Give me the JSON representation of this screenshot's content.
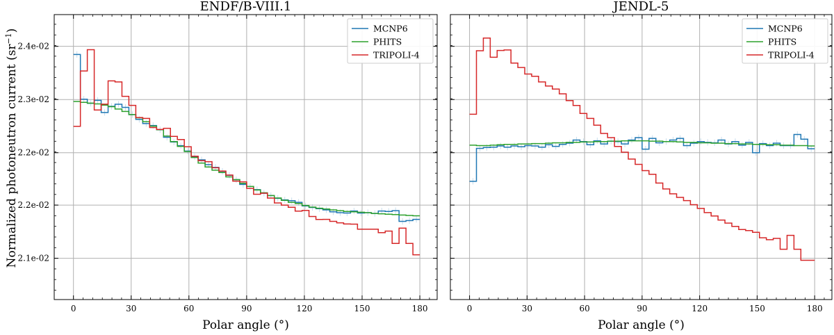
{
  "figure": {
    "ylabel_main": "Normalized photoneutron current (sr",
    "ylabel_exp": "−1",
    "ylabel_close": ")"
  },
  "chart_data": [
    {
      "type": "line",
      "title": "ENDF/B-VIII.1",
      "xlabel": "Polar angle (°)",
      "ylabel": "Normalized photoneutron current (sr−1)",
      "xlim": [
        -10,
        189
      ],
      "ylim": [
        0.02048,
        0.02407
      ],
      "xticks": [
        0,
        30,
        60,
        90,
        120,
        150,
        180
      ],
      "yticks": [
        0.021,
        0.02167,
        0.02233,
        0.023,
        0.02367
      ],
      "ytick_labels": [
        "2.1e-02",
        "2.2e-02",
        "2.2e-02",
        "2.3e-02",
        "2.4e-02"
      ],
      "grid": true,
      "legend_position": "top-right",
      "bin_edges": [
        0,
        3.6,
        7.2,
        10.8,
        14.4,
        18,
        21.6,
        25.2,
        28.8,
        32.4,
        36,
        39.6,
        43.2,
        46.8,
        50.4,
        54,
        57.6,
        61.2,
        64.8,
        68.4,
        72,
        75.6,
        79.2,
        82.8,
        86.4,
        90,
        93.6,
        97.2,
        100.8,
        104.4,
        108,
        111.6,
        115.2,
        118.8,
        122.4,
        126,
        129.6,
        133.2,
        136.8,
        140.4,
        144,
        147.6,
        151.2,
        154.8,
        158.4,
        162,
        165.6,
        169.2,
        172.8,
        176.4,
        180
      ],
      "series": [
        {
          "name": "MCNP6",
          "color": "#1f77b4",
          "values": [
            0.023568,
            0.023004,
            0.022952,
            0.02299,
            0.022837,
            0.022914,
            0.02294,
            0.022901,
            0.02281,
            0.02275,
            0.022698,
            0.022672,
            0.02262,
            0.022525,
            0.022465,
            0.022418,
            0.02235,
            0.02228,
            0.02224,
            0.02218,
            0.022145,
            0.022095,
            0.022045,
            0.02199,
            0.02193,
            0.021905,
            0.021865,
            0.02182,
            0.02179,
            0.021755,
            0.021735,
            0.021725,
            0.021705,
            0.02166,
            0.02164,
            0.021625,
            0.02161,
            0.021585,
            0.021575,
            0.02157,
            0.021595,
            0.02157,
            0.021575,
            0.021565,
            0.021595,
            0.02159,
            0.0216,
            0.021465,
            0.021475,
            0.02149
          ]
        },
        {
          "name": "PHITS",
          "color": "#2ca02c",
          "values": [
            0.022975,
            0.022965,
            0.022955,
            0.022945,
            0.02293,
            0.02291,
            0.02288,
            0.02285,
            0.02281,
            0.02277,
            0.02272,
            0.022665,
            0.02262,
            0.02254,
            0.02247,
            0.02241,
            0.022345,
            0.02227,
            0.0222,
            0.02215,
            0.02211,
            0.02208,
            0.022025,
            0.02199,
            0.021945,
            0.021905,
            0.02186,
            0.021825,
            0.02179,
            0.02176,
            0.02173,
            0.021705,
            0.02169,
            0.021665,
            0.021645,
            0.02163,
            0.02162,
            0.02161,
            0.0216,
            0.02159,
            0.021585,
            0.02158,
            0.021575,
            0.021565,
            0.02156,
            0.021555,
            0.02155,
            0.021545,
            0.02154,
            0.021535
          ]
        },
        {
          "name": "TRIPOLI-4",
          "color": "#d62728",
          "values": [
            0.022662,
            0.02336,
            0.023628,
            0.022868,
            0.022942,
            0.023235,
            0.023222,
            0.02304,
            0.022926,
            0.022773,
            0.022762,
            0.022647,
            0.022623,
            0.022637,
            0.022535,
            0.022496,
            0.022405,
            0.022286,
            0.02223,
            0.022217,
            0.02214,
            0.022099,
            0.022048,
            0.021972,
            0.021963,
            0.021881,
            0.021807,
            0.02182,
            0.021758,
            0.021697,
            0.02167,
            0.021642,
            0.021594,
            0.021603,
            0.021526,
            0.021489,
            0.02149,
            0.021465,
            0.021446,
            0.021432,
            0.02143,
            0.021366,
            0.021367,
            0.021366,
            0.021323,
            0.021343,
            0.021187,
            0.02138,
            0.021187,
            0.021044
          ]
        }
      ]
    },
    {
      "type": "line",
      "title": "JENDL-5",
      "xlabel": "Polar angle (°)",
      "ylim": [
        0.02048,
        0.02407
      ],
      "xlim": [
        -10,
        189
      ],
      "xticks": [
        0,
        30,
        60,
        90,
        120,
        150,
        180
      ],
      "grid": true,
      "legend_position": "top-right",
      "bin_edges": [
        0,
        3.6,
        7.2,
        10.8,
        14.4,
        18,
        21.6,
        25.2,
        28.8,
        32.4,
        36,
        39.6,
        43.2,
        46.8,
        50.4,
        54,
        57.6,
        61.2,
        64.8,
        68.4,
        72,
        75.6,
        79.2,
        82.8,
        86.4,
        90,
        93.6,
        97.2,
        100.8,
        104.4,
        108,
        111.6,
        115.2,
        118.8,
        122.4,
        126,
        129.6,
        133.2,
        136.8,
        140.4,
        144,
        147.6,
        151.2,
        154.8,
        158.4,
        162,
        165.6,
        169.2,
        172.8,
        176.4,
        180
      ],
      "series": [
        {
          "name": "MCNP6",
          "color": "#1f77b4",
          "values": [
            0.02197,
            0.022385,
            0.022395,
            0.0224,
            0.022415,
            0.0224,
            0.022415,
            0.022405,
            0.02242,
            0.022415,
            0.0224,
            0.02243,
            0.02241,
            0.022435,
            0.02245,
            0.02249,
            0.02247,
            0.02243,
            0.02248,
            0.02244,
            0.022475,
            0.02247,
            0.02244,
            0.02249,
            0.02252,
            0.022375,
            0.02251,
            0.022455,
            0.02247,
            0.02249,
            0.02251,
            0.02242,
            0.02245,
            0.02247,
            0.02246,
            0.022455,
            0.02249,
            0.02244,
            0.02247,
            0.022425,
            0.02246,
            0.02233,
            0.022445,
            0.02242,
            0.02245,
            0.02242,
            0.02242,
            0.02256,
            0.0225,
            0.02238
          ]
        },
        {
          "name": "PHITS",
          "color": "#2ca02c",
          "values": [
            0.022425,
            0.02242,
            0.02242,
            0.022425,
            0.02243,
            0.022435,
            0.022435,
            0.02244,
            0.02244,
            0.022445,
            0.022445,
            0.02245,
            0.022455,
            0.022455,
            0.02246,
            0.02246,
            0.022465,
            0.022465,
            0.02247,
            0.02247,
            0.022475,
            0.022475,
            0.02248,
            0.02248,
            0.02248,
            0.02248,
            0.022475,
            0.022475,
            0.02247,
            0.02247,
            0.022465,
            0.02246,
            0.02246,
            0.022455,
            0.022455,
            0.02245,
            0.02245,
            0.022445,
            0.022445,
            0.02244,
            0.02244,
            0.022435,
            0.022435,
            0.02243,
            0.02243,
            0.022425,
            0.022425,
            0.02242,
            0.02242,
            0.022415
          ]
        },
        {
          "name": "TRIPOLI-4",
          "color": "#d62728",
          "values": [
            0.022815,
            0.023615,
            0.023775,
            0.023533,
            0.023618,
            0.023625,
            0.023459,
            0.023403,
            0.023321,
            0.023293,
            0.023222,
            0.02317,
            0.023132,
            0.023072,
            0.022987,
            0.022925,
            0.022825,
            0.022762,
            0.022677,
            0.022573,
            0.02252,
            0.022409,
            0.022336,
            0.02225,
            0.022183,
            0.022104,
            0.022058,
            0.021948,
            0.021873,
            0.021812,
            0.021767,
            0.021727,
            0.021675,
            0.021628,
            0.021576,
            0.021533,
            0.021482,
            0.021443,
            0.021402,
            0.021362,
            0.021349,
            0.021327,
            0.021258,
            0.021234,
            0.02125,
            0.021114,
            0.021289,
            0.021114,
            0.020975,
            0.020975
          ]
        }
      ]
    }
  ]
}
